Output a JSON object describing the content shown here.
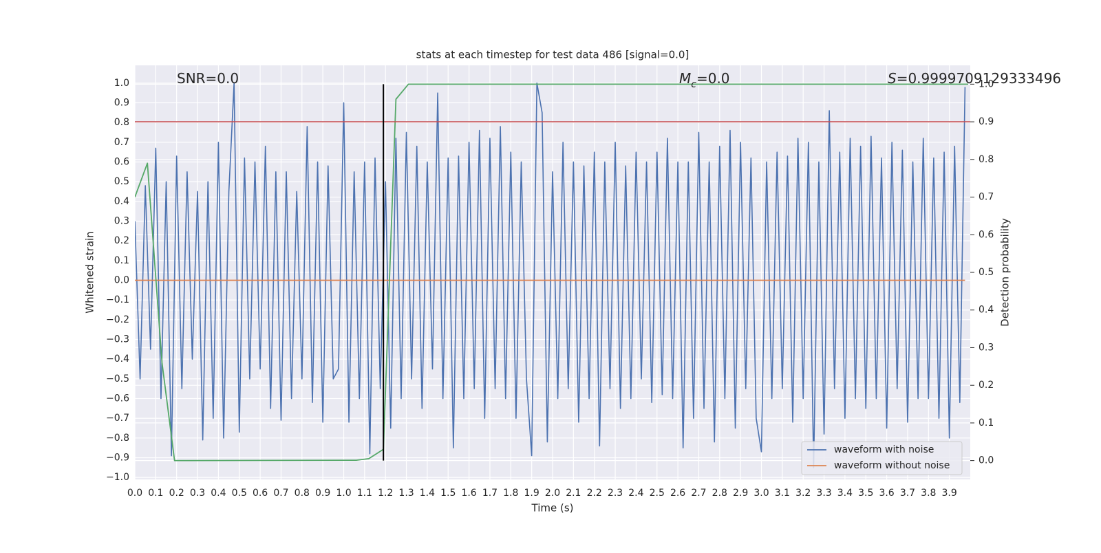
{
  "chart_data": {
    "type": "line",
    "title": "stats at each timestep for test data 486 [signal=0.0]",
    "xlabel": "Time (s)",
    "ylabel": "Whitened strain",
    "y2label": "Detection probability",
    "xlim": [
      0,
      4.0
    ],
    "ylim": [
      -1.01,
      1.09
    ],
    "y2lim": [
      -0.05,
      1.05
    ],
    "grid": true,
    "legend": "lower right",
    "xticks": [
      {
        "value": 0,
        "label": "0.0"
      },
      0.1,
      0.2,
      0.3,
      0.4,
      0.5,
      0.6,
      0.7,
      0.8,
      0.9,
      {
        "value": 1,
        "label": "1.0"
      },
      1.1,
      1.2,
      1.3,
      1.4,
      1.5,
      1.6,
      1.7,
      1.8,
      1.9,
      {
        "value": 2,
        "label": "2.0"
      },
      2.1,
      2.2,
      2.3,
      2.4,
      2.5,
      2.6,
      2.7,
      2.8,
      2.9,
      {
        "value": 3,
        "label": "3.0"
      },
      3.1,
      3.2,
      3.3,
      3.4,
      3.5,
      3.6,
      3.7,
      3.8,
      3.9
    ],
    "yticks": [
      {
        "value": -1,
        "label": "−1.0"
      },
      {
        "value": -0.9,
        "label": "−0.9"
      },
      {
        "value": -0.8,
        "label": "−0.8"
      },
      {
        "value": -0.7,
        "label": "−0.7"
      },
      {
        "value": -0.6,
        "label": "−0.6"
      },
      {
        "value": -0.5,
        "label": "−0.5"
      },
      {
        "value": -0.4,
        "label": "−0.4"
      },
      {
        "value": -0.3,
        "label": "−0.3"
      },
      {
        "value": -0.2,
        "label": "−0.2"
      },
      {
        "value": -0.1,
        "label": "−0.1"
      },
      {
        "value": 0,
        "label": "0.0"
      },
      0.1,
      0.2,
      0.3,
      0.4,
      0.5,
      0.6,
      0.7,
      0.8,
      0.9,
      {
        "value": 1,
        "label": "1.0"
      }
    ],
    "y2ticks": [
      {
        "value": 0,
        "label": "0.0"
      },
      0.1,
      0.2,
      0.3,
      0.4,
      0.5,
      0.6,
      0.7,
      0.8,
      0.9,
      {
        "value": 1,
        "label": "1.0"
      }
    ],
    "series": [
      {
        "name": "waveform with noise",
        "color": "#4c72b0",
        "axis": "y",
        "x": [
          0,
          0.025,
          0.05,
          0.075,
          0.1,
          0.125,
          0.15,
          0.175,
          0.2,
          0.225,
          0.25,
          0.275,
          0.3,
          0.325,
          0.35,
          0.375,
          0.4,
          0.425,
          0.45,
          0.475,
          0.5,
          0.525,
          0.55,
          0.575,
          0.6,
          0.625,
          0.65,
          0.675,
          0.7,
          0.725,
          0.75,
          0.775,
          0.8,
          0.825,
          0.85,
          0.875,
          0.9,
          0.925,
          0.95,
          0.975,
          1,
          1.025,
          1.05,
          1.075,
          1.1,
          1.125,
          1.15,
          1.175,
          1.2,
          1.225,
          1.25,
          1.275,
          1.3,
          1.325,
          1.35,
          1.375,
          1.4,
          1.425,
          1.45,
          1.475,
          1.5,
          1.525,
          1.55,
          1.575,
          1.6,
          1.625,
          1.65,
          1.675,
          1.7,
          1.725,
          1.75,
          1.775,
          1.8,
          1.825,
          1.85,
          1.875,
          1.9,
          1.925,
          1.95,
          1.975,
          2,
          2.025,
          2.05,
          2.075,
          2.1,
          2.125,
          2.15,
          2.175,
          2.2,
          2.225,
          2.25,
          2.275,
          2.3,
          2.325,
          2.35,
          2.375,
          2.4,
          2.425,
          2.45,
          2.475,
          2.5,
          2.525,
          2.55,
          2.575,
          2.6,
          2.625,
          2.65,
          2.675,
          2.7,
          2.725,
          2.75,
          2.775,
          2.8,
          2.825,
          2.85,
          2.875,
          2.9,
          2.925,
          2.95,
          2.975,
          3,
          3.025,
          3.05,
          3.075,
          3.1,
          3.125,
          3.15,
          3.175,
          3.2,
          3.225,
          3.25,
          3.275,
          3.3,
          3.325,
          3.35,
          3.375,
          3.4,
          3.425,
          3.45,
          3.475,
          3.5,
          3.525,
          3.55,
          3.575,
          3.6,
          3.625,
          3.65,
          3.675,
          3.7,
          3.725,
          3.75,
          3.775,
          3.8,
          3.825,
          3.85,
          3.875,
          3.9,
          3.925,
          3.95,
          3.975
        ],
        "values": [
          0.3,
          -0.5,
          0.48,
          -0.35,
          0.67,
          -0.6,
          0.5,
          -0.89,
          0.63,
          -0.55,
          0.55,
          -0.4,
          0.45,
          -0.81,
          0.5,
          -0.7,
          0.7,
          -0.8,
          0.45,
          1.0,
          -0.77,
          0.62,
          -0.5,
          0.6,
          -0.45,
          0.68,
          -0.65,
          0.55,
          -0.71,
          0.55,
          -0.6,
          0.45,
          -0.5,
          0.78,
          -0.62,
          0.6,
          -0.72,
          0.58,
          -0.5,
          -0.45,
          0.9,
          -0.72,
          0.55,
          -0.6,
          0.6,
          -0.88,
          0.62,
          -0.55,
          0.5,
          -0.75,
          0.72,
          -0.6,
          0.75,
          -0.5,
          0.68,
          -0.65,
          0.6,
          -0.45,
          0.95,
          -0.6,
          0.62,
          -0.85,
          0.63,
          -0.6,
          0.7,
          -0.55,
          0.76,
          -0.7,
          0.72,
          -0.55,
          0.78,
          -0.6,
          0.65,
          -0.7,
          0.6,
          -0.5,
          -0.89,
          1.0,
          0.85,
          -0.82,
          0.55,
          -0.6,
          0.7,
          -0.55,
          0.6,
          -0.72,
          0.58,
          -0.6,
          0.65,
          -0.84,
          0.6,
          -0.55,
          0.7,
          -0.65,
          0.58,
          -0.6,
          0.65,
          -0.5,
          0.6,
          -0.62,
          0.65,
          -0.58,
          0.72,
          -0.6,
          0.6,
          -0.85,
          0.6,
          -0.7,
          0.75,
          -0.65,
          0.6,
          -0.82,
          0.68,
          -0.6,
          0.76,
          -0.75,
          0.7,
          -0.55,
          0.62,
          -0.7,
          -0.87,
          0.6,
          -0.6,
          0.65,
          -0.55,
          0.63,
          -0.72,
          0.72,
          -0.6,
          0.7,
          -0.95,
          0.6,
          -0.78,
          0.86,
          -0.55,
          0.65,
          -0.7,
          0.72,
          -0.6,
          0.68,
          -0.65,
          0.73,
          -0.6,
          0.62,
          -0.75,
          0.7,
          -0.55,
          0.66,
          -0.72,
          0.6,
          -0.6,
          0.72,
          -0.6,
          0.62,
          -0.7,
          0.65,
          -0.8,
          0.68,
          -0.62,
          0.98
        ]
      },
      {
        "name": "waveform without noise",
        "color": "#dd8452",
        "axis": "y",
        "x": [
          0,
          3.975
        ],
        "values": [
          0,
          0
        ]
      },
      {
        "color": "#55a868",
        "axis": "y2",
        "x": [
          0,
          0.06,
          0.13,
          0.19,
          0.25,
          1.06,
          1.12,
          1.19,
          1.25,
          1.31,
          3.99
        ],
        "values": [
          0.7,
          0.79,
          0.26,
          0.0,
          0.0,
          0.001,
          0.005,
          0.03,
          0.96,
          1.0,
          1.0
        ]
      }
    ],
    "hlines": [
      {
        "value": 0.9,
        "axis": "y2",
        "color": "#c44e52"
      }
    ],
    "vlines": [
      {
        "value": 1.19,
        "axis": "y2",
        "from": 0,
        "to": 1,
        "color": "#000000"
      }
    ],
    "annotations": [
      {
        "text": "SNR=0.0"
      },
      {
        "symbol": "M",
        "subscript": "c",
        "text": "=0.0"
      },
      {
        "symbol": "S",
        "text": "=0.9999709129333496"
      }
    ]
  }
}
